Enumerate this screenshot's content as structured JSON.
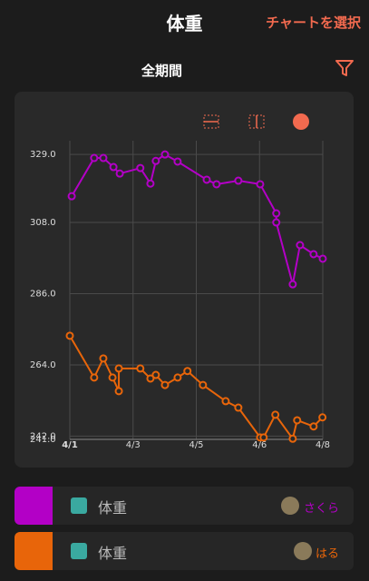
{
  "header": {
    "title": "体重",
    "action": "チャートを選択"
  },
  "filter": {
    "label": "全期間"
  },
  "chart_data": {
    "type": "line",
    "xlim": [
      0,
      8
    ],
    "xticks": [
      {
        "value": 0,
        "label": "4/1"
      },
      {
        "value": 2,
        "label": "4/3"
      },
      {
        "value": 4,
        "label": "4/5"
      },
      {
        "value": 6,
        "label": "4/6"
      },
      {
        "value": 8,
        "label": "4/8"
      }
    ],
    "ylim": [
      241,
      331
    ],
    "yticks": [
      {
        "value": 329,
        "label": "329.0"
      },
      {
        "value": 308,
        "label": "308.0"
      },
      {
        "value": 286,
        "label": "286.0"
      },
      {
        "value": 264,
        "label": "264.0"
      },
      {
        "value": 242,
        "label": "242.0"
      },
      {
        "value": 241,
        "label": "241.0"
      }
    ],
    "grid": true,
    "series": [
      {
        "color": "#b300c6",
        "x": [
          0.06,
          0.77,
          1.06,
          1.38,
          1.58,
          2.23,
          2.55,
          2.72,
          3.01,
          3.41,
          4.33,
          4.64,
          5.33,
          6.02,
          6.53,
          6.53,
          7.05,
          7.28,
          7.71,
          8.0
        ],
        "values": [
          316.1,
          327.9,
          327.9,
          325.1,
          323.1,
          324.8,
          320.0,
          327.0,
          329.0,
          326.8,
          321.2,
          319.8,
          320.9,
          319.8,
          310.8,
          308.0,
          288.9,
          301.0,
          298.2,
          296.8
        ]
      },
      {
        "color": "#e8650a",
        "x": [
          0,
          0.77,
          1.06,
          1.35,
          1.55,
          1.55,
          2.23,
          2.55,
          2.72,
          3.01,
          3.41,
          3.72,
          4.21,
          4.93,
          5.33,
          6.02,
          6.13,
          6.5,
          7.05,
          7.19,
          7.71,
          7.99
        ],
        "values": [
          273.0,
          260.1,
          266.0,
          260.1,
          255.9,
          262.9,
          262.9,
          259.8,
          260.9,
          257.8,
          260.1,
          262.1,
          257.8,
          252.8,
          250.8,
          241.6,
          241.6,
          248.6,
          241.2,
          246.9,
          245.0,
          247.8
        ]
      }
    ]
  },
  "legend": {
    "rows": [
      {
        "label": "体重",
        "name": "さくら",
        "color": "#b300c6",
        "name_color": "#b300c6"
      },
      {
        "label": "体重",
        "name": "はる",
        "color": "#e8650a",
        "name_color": "#e8650a"
      }
    ]
  }
}
